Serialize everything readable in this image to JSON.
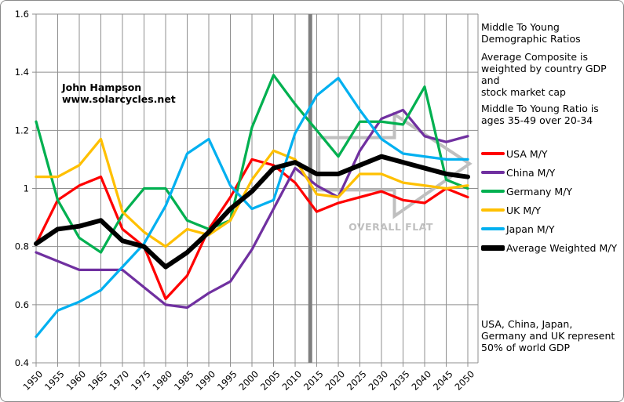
{
  "chart_data": {
    "type": "line",
    "title": "Middle To Young Demographic Ratios",
    "xlabel": "",
    "ylabel": "",
    "x": [
      1950,
      1955,
      1960,
      1965,
      1970,
      1975,
      1980,
      1985,
      1990,
      1995,
      2000,
      2005,
      2010,
      2015,
      2020,
      2025,
      2030,
      2035,
      2040,
      2045,
      2050
    ],
    "x_tick_labels": [
      "1950",
      "1955",
      "1960",
      "1965",
      "1970",
      "1975",
      "1980",
      "1985",
      "1990",
      "1995",
      "2000",
      "2005",
      "2010",
      "2015",
      "2020",
      "2025",
      "2030",
      "2035",
      "2040",
      "2045",
      "2050"
    ],
    "ylim": [
      0.4,
      1.6
    ],
    "y_ticks": [
      0.4,
      0.6,
      0.8,
      1,
      1.2,
      1.4,
      1.6
    ],
    "y_tick_labels": [
      "0.4",
      "0.6",
      "0.8",
      "1",
      "1.2",
      "1.4",
      "1.6"
    ],
    "grid": true,
    "legend_position": "right",
    "grid_color": "#8F8F8F",
    "series": [
      {
        "name": "USA M/Y",
        "color": "#FF0000",
        "width": 3.25,
        "values": [
          0.81,
          0.96,
          1.01,
          1.04,
          0.86,
          0.8,
          0.62,
          0.7,
          0.86,
          0.97,
          1.1,
          1.08,
          1.02,
          0.92,
          0.95,
          0.97,
          0.99,
          0.96,
          0.95,
          1.0,
          0.97
        ]
      },
      {
        "name": "China M/Y",
        "color": "#7030A0",
        "width": 3.25,
        "values": [
          0.78,
          0.75,
          0.72,
          0.72,
          0.72,
          0.66,
          0.6,
          0.59,
          0.64,
          0.68,
          0.79,
          0.93,
          1.07,
          1.01,
          0.97,
          1.13,
          1.24,
          1.27,
          1.18,
          1.16,
          1.18
        ]
      },
      {
        "name": "Germany M/Y",
        "color": "#00B050",
        "width": 3.25,
        "values": [
          1.23,
          0.96,
          0.83,
          0.78,
          0.91,
          1.0,
          1.0,
          0.89,
          0.86,
          0.89,
          1.21,
          1.39,
          1.29,
          1.2,
          1.11,
          1.23,
          1.23,
          1.22,
          1.35,
          1.03,
          1.0
        ]
      },
      {
        "name": "UK M/Y",
        "color": "#FFC000",
        "width": 3.25,
        "values": [
          1.04,
          1.04,
          1.08,
          1.17,
          0.92,
          0.85,
          0.8,
          0.86,
          0.84,
          0.89,
          1.03,
          1.13,
          1.1,
          0.98,
          0.97,
          1.05,
          1.05,
          1.02,
          1.01,
          1.0,
          1.01
        ]
      },
      {
        "name": "Japan M/Y",
        "color": "#00B0F0",
        "width": 3.25,
        "values": [
          0.49,
          0.58,
          0.61,
          0.65,
          0.73,
          0.81,
          0.94,
          1.12,
          1.17,
          1.01,
          0.93,
          0.96,
          1.19,
          1.32,
          1.38,
          1.27,
          1.17,
          1.12,
          1.11,
          1.1,
          1.1
        ]
      },
      {
        "name": "Average Weighted M/Y",
        "color": "#000000",
        "width": 6,
        "values": [
          0.81,
          0.86,
          0.87,
          0.89,
          0.82,
          0.8,
          0.73,
          0.78,
          0.85,
          0.93,
          0.99,
          1.07,
          1.09,
          1.05,
          1.05,
          1.08,
          1.11,
          1.09,
          1.07,
          1.05,
          1.04
        ]
      }
    ],
    "annotations": {
      "watermark": "John Hampson\nwww.solarcycles.net",
      "overall_flat": {
        "label": "OVERALL FLAT",
        "color": "#C0C0C0",
        "x": 497,
        "y": 293
      },
      "now_bar": {
        "year": 2013.5,
        "color": "#7F7F7F",
        "width": 5
      },
      "flat_arrow": {
        "color": "#BFBFBF",
        "stroke_width": 4,
        "points_year_value": [
          [
            2015.5,
            1.175
          ],
          [
            2033,
            1.175
          ],
          [
            2033,
            1.255
          ],
          [
            2050.4,
            1.085
          ],
          [
            2033,
            0.905
          ],
          [
            2033,
            0.995
          ],
          [
            2015.5,
            0.995
          ]
        ]
      }
    }
  },
  "side_panel": {
    "block1": "Middle To Young\nDemographic Ratios",
    "block2": "Average Composite is\nweighted by country GDP and\nstock market cap",
    "block3": "Middle To Young Ratio is\nages 35-49 over 20-34",
    "block4": "USA, China, Japan,\nGermany and UK represent\n50% of world GDP"
  }
}
